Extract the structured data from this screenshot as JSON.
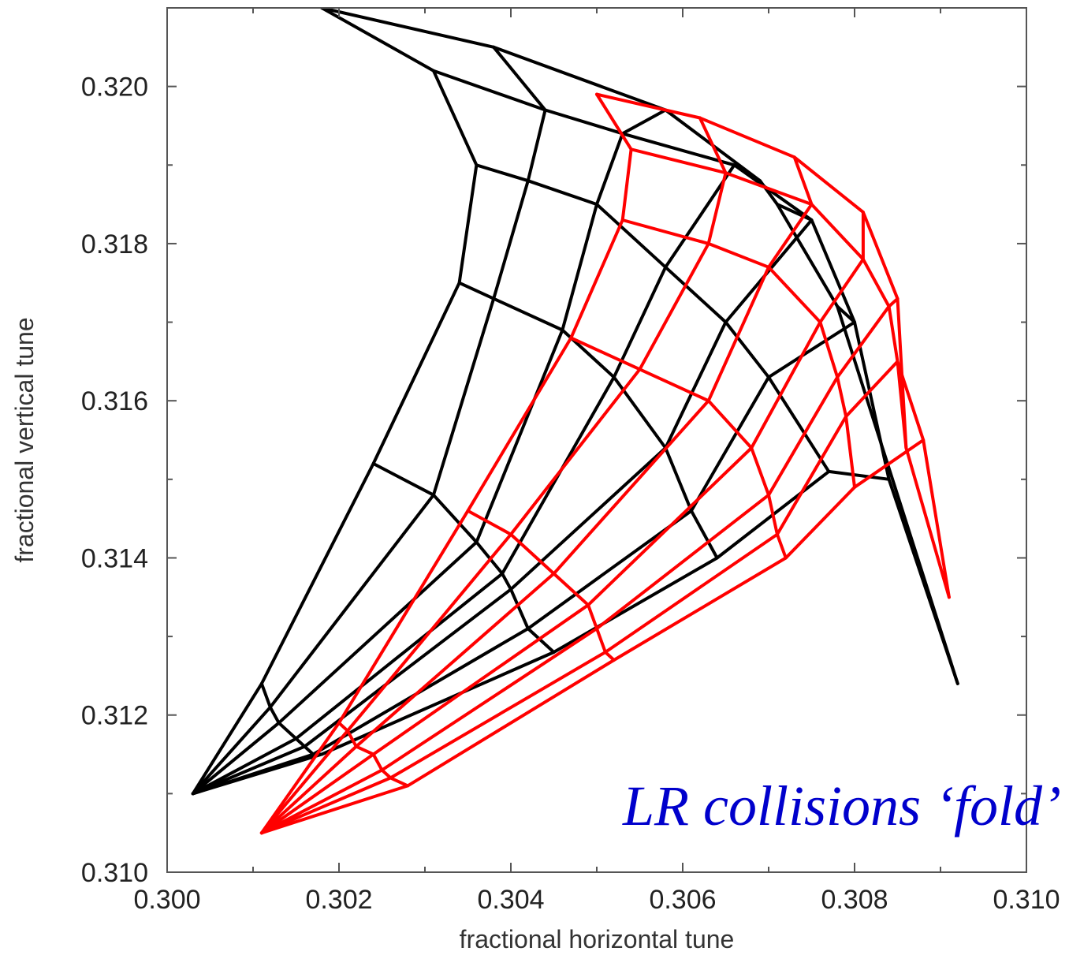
{
  "chart_data": {
    "type": "line",
    "title": "",
    "xlabel": "fractional horizontal tune",
    "ylabel": "fractional vertical tune",
    "xlim": [
      0.3,
      0.31
    ],
    "ylim": [
      0.31,
      0.321
    ],
    "xticks": [
      "0.300",
      "0.302",
      "0.304",
      "0.306",
      "0.308",
      "0.310"
    ],
    "yticks": [
      "0.310",
      "0.312",
      "0.314",
      "0.316",
      "0.318",
      "0.320"
    ],
    "xtick_values": [
      0.3,
      0.302,
      0.304,
      0.306,
      0.308,
      0.31
    ],
    "ytick_values": [
      0.31,
      0.312,
      0.314,
      0.316,
      0.318,
      0.32
    ],
    "annotation": "LR collisions ‘fold’",
    "colors": {
      "series_1": "#000000",
      "series_2": "#ff0000",
      "annotation": "#0000cc",
      "axes": "#555555"
    },
    "series": [
      {
        "color": "#000000",
        "grid": [
          [
            [
              0.3003,
              0.311
            ],
            [
              0.3003,
              0.311
            ],
            [
              0.3003,
              0.311
            ],
            [
              0.3003,
              0.311
            ],
            [
              0.3003,
              0.311
            ],
            [
              0.3003,
              0.311
            ],
            [
              0.3003,
              0.311
            ]
          ],
          [
            [
              0.3011,
              0.3124
            ],
            [
              0.3012,
              0.3121
            ],
            [
              0.3013,
              0.3119
            ],
            [
              0.3015,
              0.3117
            ],
            [
              0.3016,
              0.3116
            ],
            [
              0.3017,
              0.3115
            ],
            [
              0.3018,
              0.3115
            ]
          ],
          [
            [
              0.3024,
              0.3152
            ],
            [
              0.3031,
              0.3148
            ],
            [
              0.3036,
              0.3142
            ],
            [
              0.3039,
              0.3138
            ],
            [
              0.304,
              0.3136
            ],
            [
              0.3042,
              0.3131
            ],
            [
              0.3045,
              0.3128
            ]
          ],
          [
            [
              0.3034,
              0.3175
            ],
            [
              0.3038,
              0.3173
            ],
            [
              0.3046,
              0.3169
            ],
            [
              0.3052,
              0.3163
            ],
            [
              0.3058,
              0.3154
            ],
            [
              0.3061,
              0.3146
            ],
            [
              0.3064,
              0.314
            ]
          ],
          [
            [
              0.3036,
              0.319
            ],
            [
              0.3042,
              0.3188
            ],
            [
              0.305,
              0.3185
            ],
            [
              0.3058,
              0.3177
            ],
            [
              0.3065,
              0.317
            ],
            [
              0.307,
              0.3163
            ],
            [
              0.3077,
              0.3151
            ]
          ],
          [
            [
              0.3031,
              0.3202
            ],
            [
              0.3044,
              0.3197
            ],
            [
              0.3053,
              0.3194
            ],
            [
              0.3066,
              0.319
            ],
            [
              0.3075,
              0.3183
            ],
            [
              0.308,
              0.317
            ],
            [
              0.3084,
              0.315
            ]
          ],
          [
            [
              0.3018,
              0.321
            ],
            [
              0.3038,
              0.3205
            ],
            [
              0.3058,
              0.3197
            ],
            [
              0.3069,
              0.3188
            ],
            [
              0.3071,
              0.3185
            ],
            [
              0.3078,
              0.3172
            ],
            [
              0.3092,
              0.3124
            ]
          ]
        ]
      },
      {
        "color": "#ff0000",
        "grid": [
          [
            [
              0.3011,
              0.3105
            ],
            [
              0.3011,
              0.3105
            ],
            [
              0.3011,
              0.3105
            ],
            [
              0.3011,
              0.3105
            ],
            [
              0.3011,
              0.3105
            ],
            [
              0.3011,
              0.3105
            ],
            [
              0.3011,
              0.3105
            ]
          ],
          [
            [
              0.302,
              0.3119
            ],
            [
              0.3021,
              0.3118
            ],
            [
              0.3022,
              0.3116
            ],
            [
              0.3024,
              0.3115
            ],
            [
              0.3025,
              0.3113
            ],
            [
              0.3026,
              0.3112
            ],
            [
              0.3028,
              0.3111
            ]
          ],
          [
            [
              0.3035,
              0.3146
            ],
            [
              0.304,
              0.3143
            ],
            [
              0.3045,
              0.3138
            ],
            [
              0.3049,
              0.3134
            ],
            [
              0.305,
              0.3131
            ],
            [
              0.3051,
              0.3128
            ],
            [
              0.3052,
              0.3127
            ]
          ],
          [
            [
              0.3047,
              0.3168
            ],
            [
              0.3055,
              0.3164
            ],
            [
              0.3063,
              0.316
            ],
            [
              0.3068,
              0.3154
            ],
            [
              0.307,
              0.3148
            ],
            [
              0.3071,
              0.3143
            ],
            [
              0.3072,
              0.314
            ]
          ],
          [
            [
              0.3053,
              0.3183
            ],
            [
              0.3063,
              0.318
            ],
            [
              0.307,
              0.3177
            ],
            [
              0.3076,
              0.317
            ],
            [
              0.3078,
              0.3163
            ],
            [
              0.3079,
              0.3158
            ],
            [
              0.308,
              0.3149
            ]
          ],
          [
            [
              0.3054,
              0.3192
            ],
            [
              0.3065,
              0.3189
            ],
            [
              0.3075,
              0.3185
            ],
            [
              0.3081,
              0.3178
            ],
            [
              0.3084,
              0.3172
            ],
            [
              0.3085,
              0.3165
            ],
            [
              0.3088,
              0.3155
            ]
          ],
          [
            [
              0.305,
              0.3199
            ],
            [
              0.3062,
              0.3196
            ],
            [
              0.3073,
              0.3191
            ],
            [
              0.3081,
              0.3184
            ],
            [
              0.3085,
              0.3173
            ],
            [
              0.3086,
              0.3154
            ],
            [
              0.3091,
              0.3135
            ]
          ]
        ]
      }
    ]
  }
}
